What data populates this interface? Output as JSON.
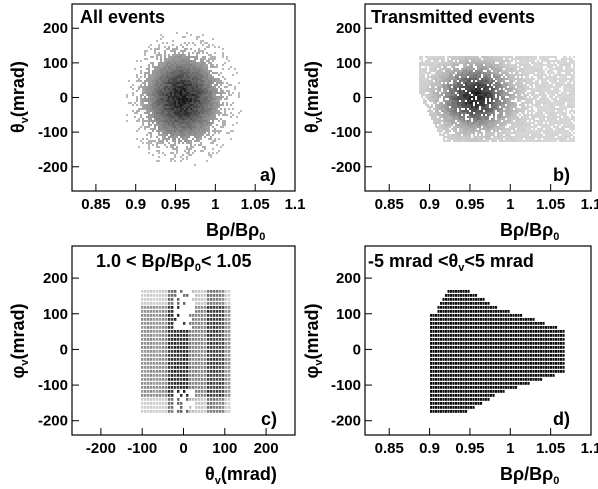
{
  "chart_data": [
    {
      "type": "heatmap",
      "title": "All events",
      "panel_label": "a)",
      "xlabel": "Bρ/Bρ₀",
      "ylabel": "θv (mrad)",
      "xlim": [
        0.82,
        1.1
      ],
      "ylim": [
        -270,
        270
      ],
      "xticks": [
        "0.85",
        "0.9",
        "0.95",
        "1",
        "1.05",
        "1.1"
      ],
      "xtick_values": [
        0.85,
        0.9,
        0.95,
        1.0,
        1.05,
        1.1
      ],
      "yticks": [
        "-200",
        "-100",
        "0",
        "100",
        "200"
      ],
      "ytick_values": [
        -200,
        -100,
        0,
        100,
        200
      ],
      "distribution": {
        "x_center": 0.957,
        "y_center": 0,
        "x_sigma": 0.027,
        "y_sigma": 72,
        "x_range": [
          0.85,
          1.06
        ],
        "y_range": [
          -220,
          220
        ]
      }
    },
    {
      "type": "heatmap",
      "title": "Transmitted events",
      "panel_label": "b)",
      "xlabel": "Bρ/Bρ₀",
      "ylabel": "θv (mrad)",
      "xlim": [
        0.82,
        1.1
      ],
      "ylim": [
        -270,
        270
      ],
      "xticks": [
        "0.85",
        "0.9",
        "0.95",
        "1",
        "1.05",
        "1.1"
      ],
      "xtick_values": [
        0.85,
        0.9,
        0.95,
        1.0,
        1.05,
        1.1
      ],
      "yticks": [
        "-200",
        "-100",
        "0",
        "100",
        "200"
      ],
      "ytick_values": [
        -200,
        -100,
        0,
        100,
        200
      ],
      "distribution": {
        "x_center": 0.955,
        "y_center": 5,
        "x_sigma": 0.026,
        "y_sigma": 55,
        "x_range": [
          0.885,
          1.08
        ],
        "y_range": [
          -125,
          120
        ]
      }
    },
    {
      "type": "heatmap",
      "title": "1.0 < Bρ/Bρ₀ < 1.05",
      "panel_label": "c)",
      "xlabel": "θv (mrad)",
      "ylabel": "φv (mrad)",
      "xlim": [
        -270,
        270
      ],
      "ylim": [
        -240,
        290
      ],
      "xticks": [
        "-200",
        "-100",
        "0",
        "100",
        "200"
      ],
      "xtick_values": [
        -200,
        -100,
        0,
        100,
        200
      ],
      "yticks": [
        "-200",
        "-100",
        "0",
        "100",
        "200"
      ],
      "ytick_values": [
        -200,
        -100,
        0,
        100,
        200
      ],
      "distribution": {
        "x_range": [
          -110,
          115
        ],
        "y_range": [
          -170,
          170
        ]
      }
    },
    {
      "type": "heatmap",
      "title": "-5 mrad < θv < 5 mrad",
      "panel_label": "d)",
      "xlabel": "Bρ/Bρ₀",
      "ylabel": "φv (mrad)",
      "xlim": [
        0.82,
        1.1
      ],
      "ylim": [
        -240,
        290
      ],
      "xticks": [
        "0.85",
        "0.9",
        "0.95",
        "1",
        "1.05",
        "1.1"
      ],
      "xtick_values": [
        0.85,
        0.9,
        0.95,
        1.0,
        1.05,
        1.1
      ],
      "yticks": [
        "-200",
        "-100",
        "0",
        "100",
        "200"
      ],
      "ytick_values": [
        -200,
        -100,
        0,
        100,
        200
      ],
      "distribution": {
        "x_range": [
          0.9,
          1.065
        ],
        "y_range": [
          -170,
          170
        ]
      }
    }
  ]
}
